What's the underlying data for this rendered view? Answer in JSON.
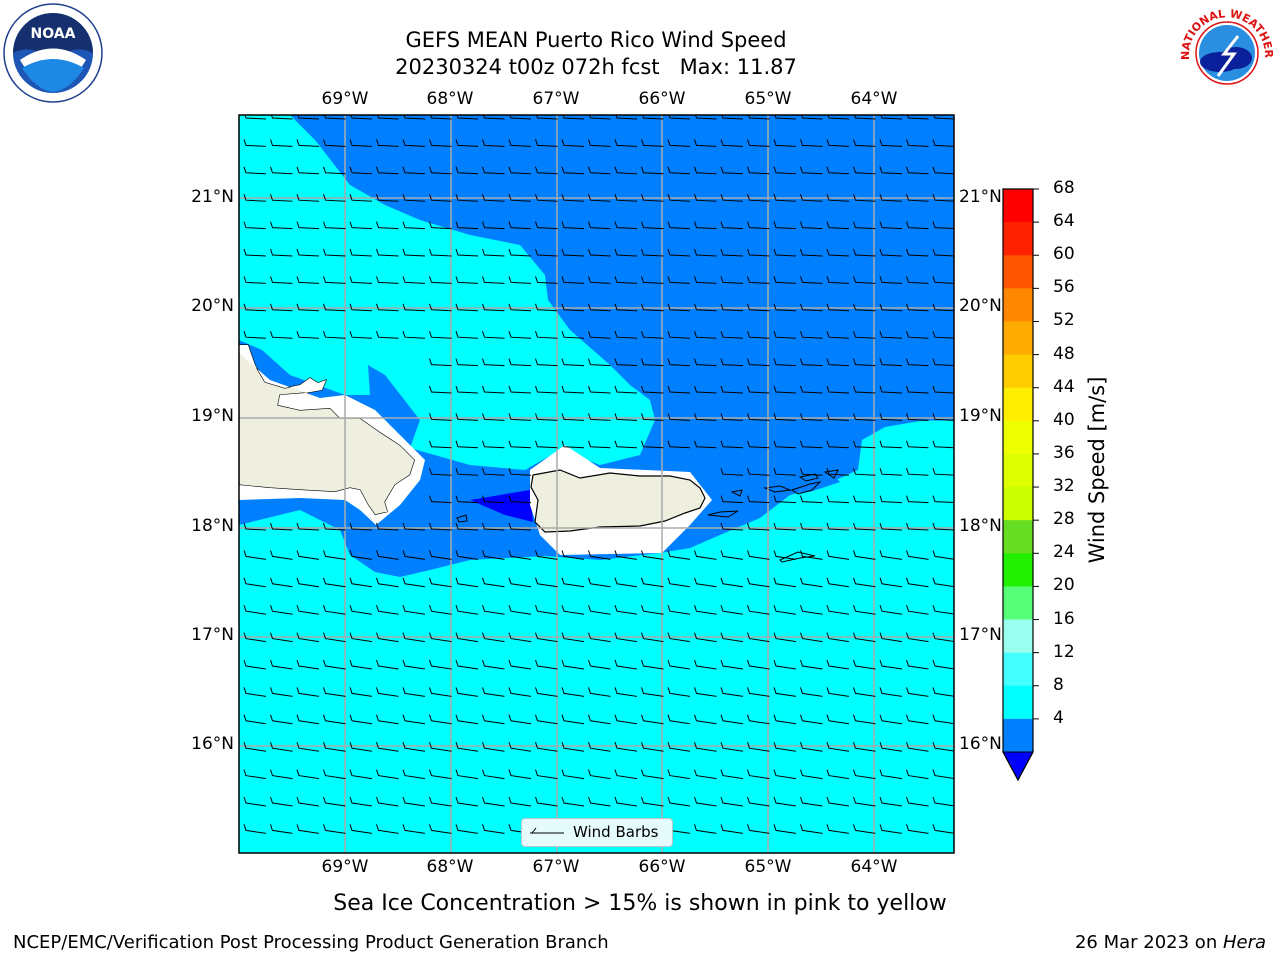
{
  "title_line1": "GEFS MEAN Puerto Rico Wind Speed",
  "title_line2": "20230324 t00z 072h fcst   Max: 11.87",
  "lon_labels": [
    "69°W",
    "68°W",
    "67°W",
    "66°W",
    "65°W",
    "64°W"
  ],
  "lat_labels": [
    "21°N",
    "20°N",
    "19°N",
    "18°N",
    "17°N",
    "16°N"
  ],
  "legend_label": "Wind Barbs",
  "colorbar": {
    "label": "Wind Speed [m/s]",
    "ticks": [
      "68",
      "64",
      "60",
      "56",
      "52",
      "48",
      "44",
      "40",
      "36",
      "32",
      "28",
      "24",
      "20",
      "16",
      "12",
      "8",
      "4"
    ],
    "colors_top_to_bottom": [
      "#ff0000",
      "#ff2200",
      "#ff5500",
      "#ff8800",
      "#ffaa00",
      "#ffcc00",
      "#ffee00",
      "#eeff00",
      "#ddff00",
      "#ccff00",
      "#66dd22",
      "#22ee00",
      "#55ff77",
      "#99ffee",
      "#44ffff",
      "#00ffff",
      "#0080ff"
    ],
    "under_color": "#0000ff"
  },
  "map_colors": {
    "wind_4_8": "#0080ff",
    "wind_8_12": "#00ffff",
    "wind_under_4": "#0000ff",
    "land": "#efefdf"
  },
  "subtitle": "Sea Ice Concentration > 15% is shown in pink to yellow",
  "footer_left": "NCEP/EMC/Verification Post Processing Product Generation Branch",
  "footer_date": "26 Mar 2023 on ",
  "footer_host": "Hera",
  "logos": {
    "noaa": "NOAA",
    "nws": "NATIONAL WEATHER SERVICE"
  }
}
